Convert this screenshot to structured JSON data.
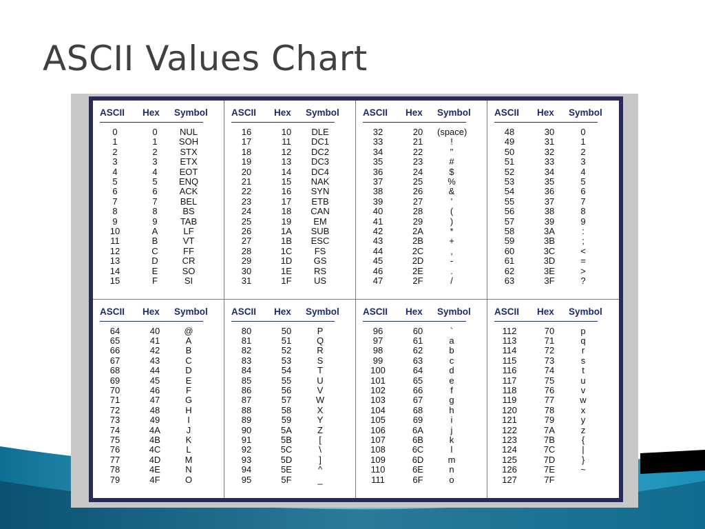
{
  "title": "ASCII Values Chart",
  "colors": {
    "title": "#404040",
    "header": "#1e2b6b",
    "frame": "#2a2a5a",
    "wave": "#1a8fb8"
  },
  "columns": [
    "ASCII",
    "Hex",
    "Symbol"
  ],
  "blocks": [
    {
      "rows": [
        [
          "0",
          "0",
          "NUL"
        ],
        [
          "1",
          "1",
          "SOH"
        ],
        [
          "2",
          "2",
          "STX"
        ],
        [
          "3",
          "3",
          "ETX"
        ],
        [
          "4",
          "4",
          "EOT"
        ],
        [
          "5",
          "5",
          "ENQ"
        ],
        [
          "6",
          "6",
          "ACK"
        ],
        [
          "7",
          "7",
          "BEL"
        ],
        [
          "8",
          "8",
          "BS"
        ],
        [
          "9",
          "9",
          "TAB"
        ],
        [
          "10",
          "A",
          "LF"
        ],
        [
          "11",
          "B",
          "VT"
        ],
        [
          "12",
          "C",
          "FF"
        ],
        [
          "13",
          "D",
          "CR"
        ],
        [
          "14",
          "E",
          "SO"
        ],
        [
          "15",
          "F",
          "SI"
        ]
      ]
    },
    {
      "rows": [
        [
          "16",
          "10",
          "DLE"
        ],
        [
          "17",
          "11",
          "DC1"
        ],
        [
          "18",
          "12",
          "DC2"
        ],
        [
          "19",
          "13",
          "DC3"
        ],
        [
          "20",
          "14",
          "DC4"
        ],
        [
          "21",
          "15",
          "NAK"
        ],
        [
          "22",
          "16",
          "SYN"
        ],
        [
          "23",
          "17",
          "ETB"
        ],
        [
          "24",
          "18",
          "CAN"
        ],
        [
          "25",
          "19",
          "EM"
        ],
        [
          "26",
          "1A",
          "SUB"
        ],
        [
          "27",
          "1B",
          "ESC"
        ],
        [
          "28",
          "1C",
          "FS"
        ],
        [
          "29",
          "1D",
          "GS"
        ],
        [
          "30",
          "1E",
          "RS"
        ],
        [
          "31",
          "1F",
          "US"
        ]
      ]
    },
    {
      "rows": [
        [
          "32",
          "20",
          "(space)"
        ],
        [
          "33",
          "21",
          "!"
        ],
        [
          "34",
          "22",
          "\""
        ],
        [
          "35",
          "23",
          "#"
        ],
        [
          "36",
          "24",
          "$"
        ],
        [
          "37",
          "25",
          "%"
        ],
        [
          "38",
          "26",
          "&"
        ],
        [
          "39",
          "27",
          "'"
        ],
        [
          "40",
          "28",
          "("
        ],
        [
          "41",
          "29",
          ")"
        ],
        [
          "42",
          "2A",
          "*"
        ],
        [
          "43",
          "2B",
          "+"
        ],
        [
          "44",
          "2C",
          ","
        ],
        [
          "45",
          "2D",
          "-"
        ],
        [
          "46",
          "2E",
          "."
        ],
        [
          "47",
          "2F",
          "/"
        ]
      ]
    },
    {
      "rows": [
        [
          "48",
          "30",
          "0"
        ],
        [
          "49",
          "31",
          "1"
        ],
        [
          "50",
          "32",
          "2"
        ],
        [
          "51",
          "33",
          "3"
        ],
        [
          "52",
          "34",
          "4"
        ],
        [
          "53",
          "35",
          "5"
        ],
        [
          "54",
          "36",
          "6"
        ],
        [
          "55",
          "37",
          "7"
        ],
        [
          "56",
          "38",
          "8"
        ],
        [
          "57",
          "39",
          "9"
        ],
        [
          "58",
          "3A",
          ":"
        ],
        [
          "59",
          "3B",
          ";"
        ],
        [
          "60",
          "3C",
          "<"
        ],
        [
          "61",
          "3D",
          "="
        ],
        [
          "62",
          "3E",
          ">"
        ],
        [
          "63",
          "3F",
          "?"
        ]
      ]
    },
    {
      "rows": [
        [
          "64",
          "40",
          "@"
        ],
        [
          "65",
          "41",
          "A"
        ],
        [
          "66",
          "42",
          "B"
        ],
        [
          "67",
          "43",
          "C"
        ],
        [
          "68",
          "44",
          "D"
        ],
        [
          "69",
          "45",
          "E"
        ],
        [
          "70",
          "46",
          "F"
        ],
        [
          "71",
          "47",
          "G"
        ],
        [
          "72",
          "48",
          "H"
        ],
        [
          "73",
          "49",
          "I"
        ],
        [
          "74",
          "4A",
          "J"
        ],
        [
          "75",
          "4B",
          "K"
        ],
        [
          "76",
          "4C",
          "L"
        ],
        [
          "77",
          "4D",
          "M"
        ],
        [
          "78",
          "4E",
          "N"
        ],
        [
          "79",
          "4F",
          "O"
        ]
      ]
    },
    {
      "rows": [
        [
          "80",
          "50",
          "P"
        ],
        [
          "81",
          "51",
          "Q"
        ],
        [
          "82",
          "52",
          "R"
        ],
        [
          "83",
          "53",
          "S"
        ],
        [
          "84",
          "54",
          "T"
        ],
        [
          "85",
          "55",
          "U"
        ],
        [
          "86",
          "56",
          "V"
        ],
        [
          "87",
          "57",
          "W"
        ],
        [
          "88",
          "58",
          "X"
        ],
        [
          "89",
          "59",
          "Y"
        ],
        [
          "90",
          "5A",
          "Z"
        ],
        [
          "91",
          "5B",
          "["
        ],
        [
          "92",
          "5C",
          "\\"
        ],
        [
          "93",
          "5D",
          "]"
        ],
        [
          "94",
          "5E",
          "^"
        ],
        [
          "95",
          "5F",
          "_"
        ]
      ]
    },
    {
      "rows": [
        [
          "96",
          "60",
          "`"
        ],
        [
          "97",
          "61",
          "a"
        ],
        [
          "98",
          "62",
          "b"
        ],
        [
          "99",
          "63",
          "c"
        ],
        [
          "100",
          "64",
          "d"
        ],
        [
          "101",
          "65",
          "e"
        ],
        [
          "102",
          "66",
          "f"
        ],
        [
          "103",
          "67",
          "g"
        ],
        [
          "104",
          "68",
          "h"
        ],
        [
          "105",
          "69",
          "i"
        ],
        [
          "106",
          "6A",
          "j"
        ],
        [
          "107",
          "6B",
          "k"
        ],
        [
          "108",
          "6C",
          "l"
        ],
        [
          "109",
          "6D",
          "m"
        ],
        [
          "110",
          "6E",
          "n"
        ],
        [
          "111",
          "6F",
          "o"
        ]
      ]
    },
    {
      "rows": [
        [
          "112",
          "70",
          "p"
        ],
        [
          "113",
          "71",
          "q"
        ],
        [
          "114",
          "72",
          "r"
        ],
        [
          "115",
          "73",
          "s"
        ],
        [
          "116",
          "74",
          "t"
        ],
        [
          "117",
          "75",
          "u"
        ],
        [
          "118",
          "76",
          "v"
        ],
        [
          "119",
          "77",
          "w"
        ],
        [
          "120",
          "78",
          "x"
        ],
        [
          "121",
          "79",
          "y"
        ],
        [
          "122",
          "7A",
          "z"
        ],
        [
          "123",
          "7B",
          "{"
        ],
        [
          "124",
          "7C",
          "|"
        ],
        [
          "125",
          "7D",
          "}"
        ],
        [
          "126",
          "7E",
          "~"
        ],
        [
          "127",
          "7F",
          ""
        ]
      ]
    }
  ]
}
